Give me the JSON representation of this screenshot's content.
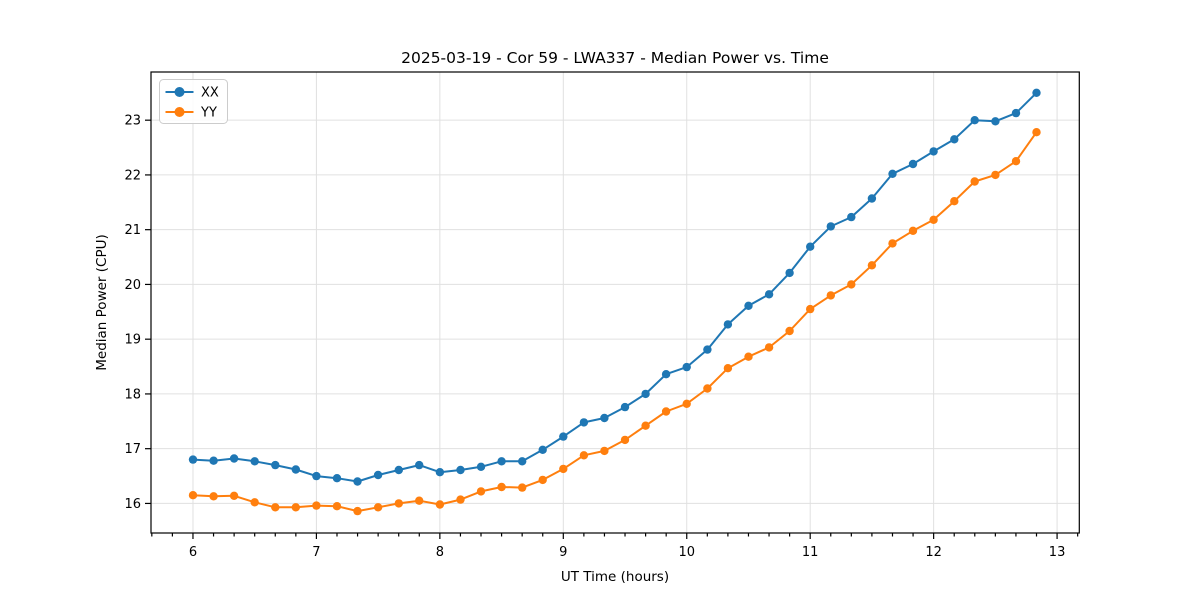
{
  "chart_data": {
    "type": "line",
    "title": "2025-03-19 - Cor 59 - LWA337 - Median Power vs. Time",
    "xlabel": "UT Time (hours)",
    "ylabel": "Median Power (CPU)",
    "xlim": [
      5.66,
      13.18
    ],
    "ylim": [
      15.46,
      23.88
    ],
    "x_ticks": [
      6,
      7,
      8,
      9,
      10,
      11,
      12,
      13
    ],
    "y_ticks": [
      16,
      17,
      18,
      19,
      20,
      21,
      22,
      23
    ],
    "x_minor_tick_step": 0.1667,
    "grid": true,
    "legend_position": "upper-left",
    "marker": "circle",
    "x": [
      6.0,
      6.167,
      6.333,
      6.5,
      6.667,
      6.833,
      7.0,
      7.167,
      7.333,
      7.5,
      7.667,
      7.833,
      8.0,
      8.167,
      8.333,
      8.5,
      8.667,
      8.833,
      9.0,
      9.167,
      9.333,
      9.5,
      9.667,
      9.833,
      10.0,
      10.167,
      10.333,
      10.5,
      10.667,
      10.833,
      11.0,
      11.167,
      11.333,
      11.5,
      11.667,
      11.833,
      12.0,
      12.167,
      12.333,
      12.5,
      12.667,
      12.833
    ],
    "series": [
      {
        "name": "XX",
        "color": "#1f77b4",
        "values": [
          16.8,
          16.78,
          16.82,
          16.77,
          16.7,
          16.62,
          16.5,
          16.46,
          16.4,
          16.52,
          16.61,
          16.7,
          16.57,
          16.61,
          16.67,
          16.77,
          16.77,
          16.98,
          17.22,
          17.48,
          17.56,
          17.76,
          18.0,
          18.36,
          18.49,
          18.81,
          19.27,
          19.61,
          19.82,
          20.21,
          20.69,
          21.06,
          21.23,
          21.57,
          22.02,
          22.2,
          22.43,
          22.65,
          23.0,
          22.98,
          23.13,
          23.5
        ]
      },
      {
        "name": "YY",
        "color": "#ff7f0e",
        "values": [
          16.15,
          16.13,
          16.14,
          16.02,
          15.93,
          15.93,
          15.96,
          15.95,
          15.86,
          15.93,
          16.0,
          16.05,
          15.98,
          16.07,
          16.22,
          16.3,
          16.29,
          16.43,
          16.63,
          16.88,
          16.96,
          17.16,
          17.42,
          17.68,
          17.82,
          18.1,
          18.47,
          18.68,
          18.85,
          19.15,
          19.55,
          19.8,
          20.0,
          20.35,
          20.75,
          20.98,
          21.18,
          21.52,
          21.88,
          22.0,
          22.25,
          22.78
        ]
      }
    ]
  },
  "colors": {
    "background": "#ffffff",
    "grid": "#e0e0e0",
    "text": "#000000",
    "series_xx": "#1f77b4",
    "series_yy": "#ff7f0e"
  }
}
